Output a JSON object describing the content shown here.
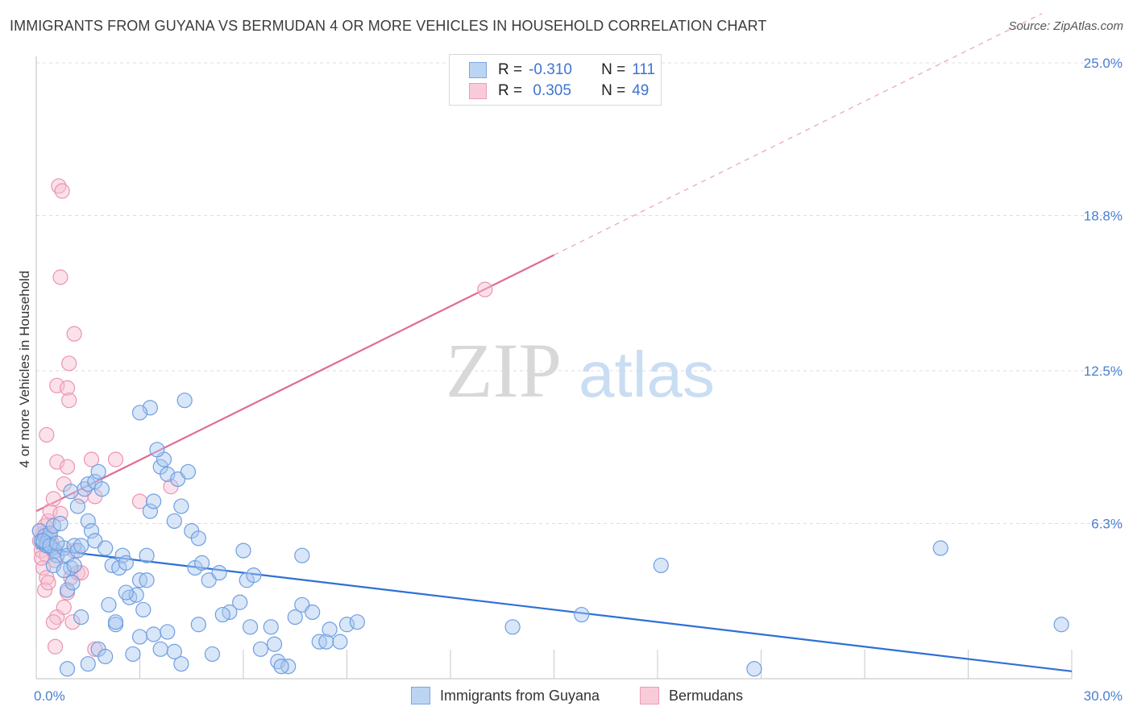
{
  "title": "IMMIGRANTS FROM GUYANA VS BERMUDAN 4 OR MORE VEHICLES IN HOUSEHOLD CORRELATION CHART",
  "source": "Source: ZipAtlas.com",
  "watermark": {
    "zip": "ZIP",
    "atlas": "atlas"
  },
  "legend": {
    "rows": [
      {
        "r_label": "R =",
        "r_value": "-0.310",
        "n_label": "N =",
        "n_value": "111"
      },
      {
        "r_label": "R =",
        "r_value": " 0.305",
        "n_label": "N =",
        "n_value": "49"
      }
    ]
  },
  "colors": {
    "blue_fill": "#a9c8f0",
    "blue_stroke": "#6f9fe0",
    "blue_line": "#2f6fd6",
    "pink_fill": "#f6bfd0",
    "pink_stroke": "#eb93b1",
    "pink_line": "#e06b96",
    "tick": "#4a7fd0",
    "grid": "#dddddd"
  },
  "chart_data": {
    "type": "scatter",
    "title": "IMMIGRANTS FROM GUYANA VS BERMUDAN 4 OR MORE VEHICLES IN HOUSEHOLD CORRELATION CHART",
    "xlabel": "",
    "ylabel": "4 or more Vehicles in Household",
    "xlim": [
      0,
      30
    ],
    "ylim": [
      0,
      25
    ],
    "x_tick_labels": [
      "0.0%",
      "30.0%"
    ],
    "y_ticks": [
      6.3,
      12.5,
      18.8,
      25.0
    ],
    "y_tick_labels": [
      "6.3%",
      "12.5%",
      "18.8%",
      "25.0%"
    ],
    "grid": true,
    "legend_position": "top-center",
    "series": [
      {
        "name": "Immigrants from Guyana",
        "color": "#a9c8f0",
        "trend": {
          "x0": 0,
          "y0": 5.3,
          "x1": 30,
          "y1": 0.3
        },
        "points": [
          [
            0.1,
            6.0
          ],
          [
            0.15,
            5.6
          ],
          [
            0.2,
            5.5
          ],
          [
            0.25,
            5.8
          ],
          [
            0.3,
            5.4
          ],
          [
            0.35,
            5.7
          ],
          [
            0.4,
            5.9
          ],
          [
            0.45,
            5.3
          ],
          [
            0.5,
            6.2
          ],
          [
            0.55,
            5.2
          ],
          [
            0.3,
            5.5
          ],
          [
            0.2,
            5.6
          ],
          [
            0.4,
            5.4
          ],
          [
            0.6,
            5.0
          ],
          [
            0.7,
            6.3
          ],
          [
            0.8,
            5.3
          ],
          [
            0.9,
            5.0
          ],
          [
            1.0,
            4.5
          ],
          [
            1.1,
            5.4
          ],
          [
            1.2,
            5.2
          ],
          [
            0.5,
            4.6
          ],
          [
            0.6,
            5.5
          ],
          [
            0.8,
            4.4
          ],
          [
            0.9,
            3.6
          ],
          [
            1.05,
            3.9
          ],
          [
            1.1,
            4.6
          ],
          [
            1.3,
            5.4
          ],
          [
            1.5,
            6.4
          ],
          [
            1.6,
            6.0
          ],
          [
            1.7,
            5.6
          ],
          [
            1.0,
            7.6
          ],
          [
            1.2,
            7.0
          ],
          [
            1.4,
            7.7
          ],
          [
            1.5,
            7.9
          ],
          [
            1.7,
            8.0
          ],
          [
            1.8,
            8.4
          ],
          [
            1.9,
            7.7
          ],
          [
            2.0,
            5.3
          ],
          [
            2.2,
            4.6
          ],
          [
            2.4,
            4.5
          ],
          [
            2.5,
            5.0
          ],
          [
            2.6,
            4.7
          ],
          [
            2.1,
            3.0
          ],
          [
            2.3,
            2.2
          ],
          [
            2.7,
            3.3
          ],
          [
            2.9,
            3.4
          ],
          [
            3.0,
            4.0
          ],
          [
            3.1,
            2.8
          ],
          [
            3.2,
            5.0
          ],
          [
            3.3,
            6.8
          ],
          [
            3.4,
            7.2
          ],
          [
            3.6,
            8.6
          ],
          [
            3.7,
            8.9
          ],
          [
            3.8,
            8.3
          ],
          [
            3.5,
            9.3
          ],
          [
            3.3,
            11.0
          ],
          [
            3.0,
            10.8
          ],
          [
            4.3,
            11.3
          ],
          [
            4.1,
            8.1
          ],
          [
            4.2,
            7.0
          ],
          [
            4.0,
            6.4
          ],
          [
            4.4,
            8.4
          ],
          [
            4.5,
            6.0
          ],
          [
            4.6,
            4.5
          ],
          [
            4.8,
            4.7
          ],
          [
            5.0,
            4.0
          ],
          [
            4.7,
            5.7
          ],
          [
            5.3,
            4.3
          ],
          [
            5.6,
            2.7
          ],
          [
            5.4,
            2.6
          ],
          [
            5.9,
            3.1
          ],
          [
            6.1,
            4.0
          ],
          [
            6.3,
            4.2
          ],
          [
            6.0,
            5.2
          ],
          [
            6.2,
            2.1
          ],
          [
            6.5,
            1.2
          ],
          [
            6.9,
            1.4
          ],
          [
            7.0,
            0.7
          ],
          [
            7.3,
            0.5
          ],
          [
            7.1,
            0.5
          ],
          [
            6.8,
            2.1
          ],
          [
            7.5,
            2.5
          ],
          [
            7.7,
            3.0
          ],
          [
            8.0,
            2.7
          ],
          [
            8.2,
            1.5
          ],
          [
            8.4,
            1.5
          ],
          [
            8.5,
            2.0
          ],
          [
            8.8,
            1.5
          ],
          [
            9.0,
            2.2
          ],
          [
            9.3,
            2.3
          ],
          [
            2.3,
            2.3
          ],
          [
            2.6,
            3.5
          ],
          [
            3.2,
            4.0
          ],
          [
            3.4,
            1.8
          ],
          [
            3.8,
            1.9
          ],
          [
            4.0,
            1.1
          ],
          [
            4.2,
            0.6
          ],
          [
            3.6,
            1.2
          ],
          [
            4.7,
            2.2
          ],
          [
            5.1,
            1.0
          ],
          [
            1.8,
            1.2
          ],
          [
            2.0,
            0.9
          ],
          [
            2.8,
            1.0
          ],
          [
            3.0,
            1.7
          ],
          [
            1.3,
            2.5
          ],
          [
            1.5,
            0.6
          ],
          [
            0.9,
            0.4
          ],
          [
            7.7,
            5.0
          ],
          [
            13.8,
            2.1
          ],
          [
            15.8,
            2.6
          ],
          [
            18.1,
            4.6
          ],
          [
            26.2,
            5.3
          ],
          [
            29.7,
            2.2
          ],
          [
            20.8,
            0.4
          ]
        ]
      },
      {
        "name": "Bermudans",
        "color": "#f6bfd0",
        "trend": {
          "x0": 0,
          "y0": 6.8,
          "x1": 15.0,
          "y1": 17.2,
          "dashed_to_x": 30,
          "dashed_to_y": 27.6
        },
        "points": [
          [
            0.1,
            5.6
          ],
          [
            0.15,
            5.2
          ],
          [
            0.2,
            5.9
          ],
          [
            0.25,
            6.2
          ],
          [
            0.3,
            5.0
          ],
          [
            0.35,
            6.4
          ],
          [
            0.4,
            5.8
          ],
          [
            0.45,
            5.5
          ],
          [
            0.5,
            5.3
          ],
          [
            0.55,
            4.8
          ],
          [
            0.2,
            4.5
          ],
          [
            0.3,
            4.1
          ],
          [
            0.25,
            3.6
          ],
          [
            0.35,
            3.9
          ],
          [
            0.4,
            6.8
          ],
          [
            0.5,
            7.3
          ],
          [
            0.6,
            8.8
          ],
          [
            0.7,
            6.7
          ],
          [
            0.8,
            7.9
          ],
          [
            0.9,
            8.6
          ],
          [
            0.3,
            9.9
          ],
          [
            0.6,
            11.9
          ],
          [
            0.9,
            11.8
          ],
          [
            0.95,
            11.3
          ],
          [
            0.95,
            12.8
          ],
          [
            1.1,
            14.0
          ],
          [
            0.7,
            16.3
          ],
          [
            0.65,
            20.0
          ],
          [
            0.75,
            19.8
          ],
          [
            1.3,
            7.4
          ],
          [
            1.6,
            8.9
          ],
          [
            1.7,
            7.4
          ],
          [
            1.1,
            5.2
          ],
          [
            1.0,
            4.1
          ],
          [
            1.2,
            4.3
          ],
          [
            0.6,
            2.5
          ],
          [
            0.5,
            2.3
          ],
          [
            0.55,
            1.3
          ],
          [
            1.05,
            2.3
          ],
          [
            0.8,
            2.9
          ],
          [
            1.3,
            4.3
          ],
          [
            1.7,
            1.2
          ],
          [
            3.0,
            7.2
          ],
          [
            3.9,
            7.8
          ],
          [
            2.3,
            8.9
          ],
          [
            0.1,
            6.0
          ],
          [
            0.15,
            4.9
          ],
          [
            0.9,
            3.5
          ],
          [
            13.0,
            15.8
          ]
        ]
      }
    ]
  },
  "axis": {
    "x_min_label": "0.0%",
    "x_max_label": "30.0%"
  }
}
